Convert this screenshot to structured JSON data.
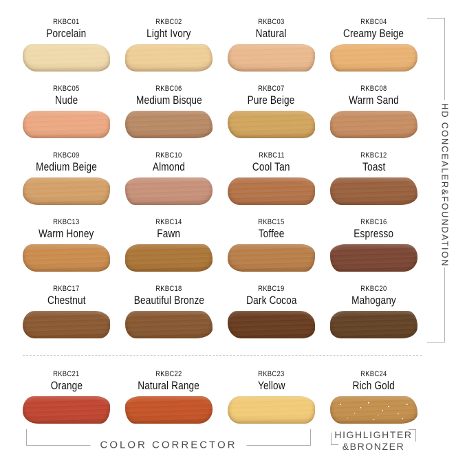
{
  "side_title": "HD CONCEALER&FOUNDATION",
  "group_labels": {
    "color_corrector": "COLOR CORRECTOR",
    "highlighter_line1": "HIGHLIGHTER",
    "highlighter_line2": "&BRONZER"
  },
  "colors": {
    "background": "#ffffff",
    "label_text": "#141414",
    "group_text": "#4a4a4a",
    "bracket_line": "#ababab",
    "divider_dash": "#bdbdbd"
  },
  "shades": [
    {
      "code": "RKBC01",
      "name": "Porcelain",
      "color": "#efd9ac"
    },
    {
      "code": "RKBC02",
      "name": "Light Ivory",
      "color": "#edce97"
    },
    {
      "code": "RKBC03",
      "name": "Natural",
      "color": "#e9b98e"
    },
    {
      "code": "RKBC04",
      "name": "Creamy Beige",
      "color": "#e9b273"
    },
    {
      "code": "RKBC05",
      "name": "Nude",
      "color": "#eba883"
    },
    {
      "code": "RKBC06",
      "name": "Medium Bisque",
      "color": "#b88a66"
    },
    {
      "code": "RKBC07",
      "name": "Pure Beige",
      "color": "#d0a55e"
    },
    {
      "code": "RKBC08",
      "name": "Warm Sand",
      "color": "#c68d63"
    },
    {
      "code": "RKBC09",
      "name": "Medium Beige",
      "color": "#d3a069"
    },
    {
      "code": "RKBC10",
      "name": "Almond",
      "color": "#c6917a"
    },
    {
      "code": "RKBC11",
      "name": "Cool Tan",
      "color": "#b4744a"
    },
    {
      "code": "RKBC12",
      "name": "Toast",
      "color": "#986240"
    },
    {
      "code": "RKBC13",
      "name": "Warm Honey",
      "color": "#c98c4f"
    },
    {
      "code": "RKBC14",
      "name": "Fawn",
      "color": "#ab7639"
    },
    {
      "code": "RKBC15",
      "name": "Toffee",
      "color": "#b97f4b"
    },
    {
      "code": "RKBC16",
      "name": "Espresso",
      "color": "#7b4836"
    },
    {
      "code": "RKBC17",
      "name": "Chestnut",
      "color": "#8a5a34"
    },
    {
      "code": "RKBC18",
      "name": "Beautiful Bronze",
      "color": "#875933"
    },
    {
      "code": "RKBC19",
      "name": "Dark Cocoa",
      "color": "#693e22"
    },
    {
      "code": "RKBC20",
      "name": "Mahogany",
      "color": "#634428"
    },
    {
      "code": "RKBC21",
      "name": "Orange",
      "color": "#bf4733"
    },
    {
      "code": "RKBC22",
      "name": "Natural Range",
      "color": "#c4552a"
    },
    {
      "code": "RKBC23",
      "name": "Yellow",
      "color": "#f0ca77"
    },
    {
      "code": "RKBC24",
      "name": "Rich Gold",
      "color": "#c28f4e",
      "sparkle": true
    }
  ]
}
